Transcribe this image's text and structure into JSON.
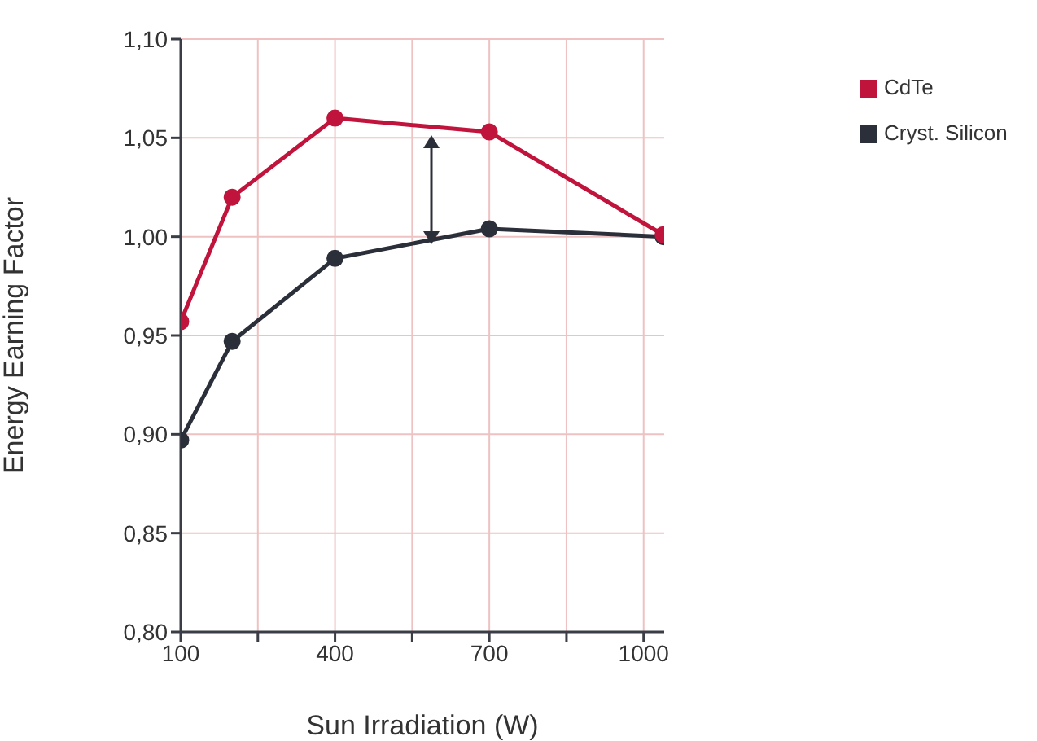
{
  "chart_data": {
    "type": "line",
    "xlabel": "Sun Irradiation (W)",
    "ylabel": "Energy Earning Factor",
    "x": [
      100,
      200,
      400,
      700,
      1038
    ],
    "series": [
      {
        "name": "CdTe",
        "color": "#c0143c",
        "values": [
          0.957,
          1.02,
          1.06,
          1.053,
          1.001
        ]
      },
      {
        "name": "Cryst. Silicon",
        "color": "#2b2f3a",
        "values": [
          0.897,
          0.947,
          0.989,
          1.004,
          1.0
        ]
      }
    ],
    "xlim": [
      100,
      1040
    ],
    "xticks": [
      100,
      {
        "value": 250,
        "label": null
      },
      400,
      {
        "value": 550,
        "label": null
      },
      700,
      {
        "value": 850,
        "label": null
      },
      1000
    ],
    "ylim": [
      0.8,
      1.1
    ],
    "yticks": [
      {
        "value": 0.8,
        "label": "0,80"
      },
      {
        "value": 0.85,
        "label": "0,85"
      },
      {
        "value": 0.9,
        "label": "0,90"
      },
      {
        "value": 0.95,
        "label": "0,95"
      },
      {
        "value": 1.0,
        "label": "1,00"
      },
      {
        "value": 1.05,
        "label": "1,05"
      },
      {
        "value": 1.1,
        "label": "1,10"
      }
    ],
    "grid": true,
    "legend": "top right",
    "marker": "circle",
    "line_style": "solid"
  }
}
